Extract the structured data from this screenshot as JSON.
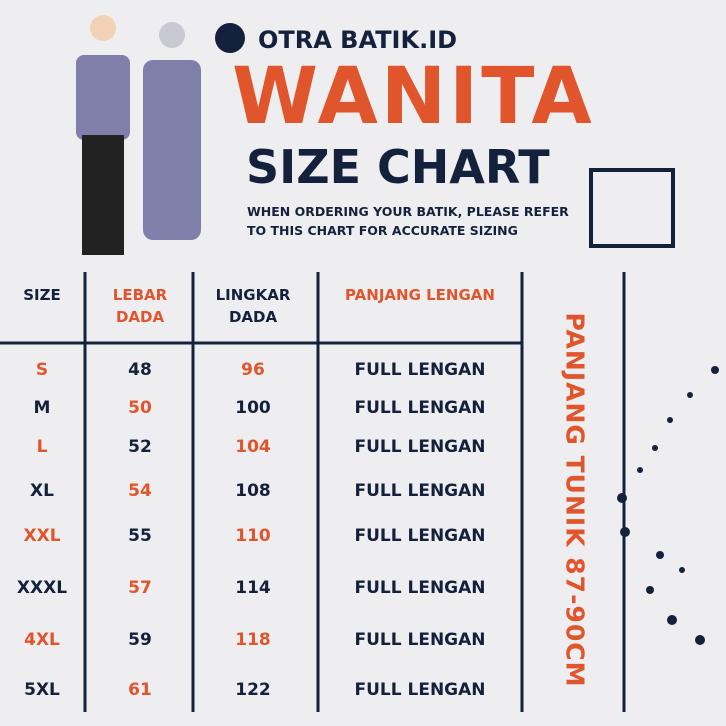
{
  "brand": "OTRA BATIK.ID",
  "title": "WANITA",
  "subtitle": "SIZE CHART",
  "note": "WHEN ORDERING YOUR BATIK, PLEASE REFER TO THIS CHART FOR ACCURATE SIZING",
  "table": {
    "headers": [
      "SIZE",
      "LEBAR DADA",
      "LINGKAR DADA",
      "PANJANG LENGAN"
    ],
    "rows": [
      [
        "S",
        "48",
        "96",
        "FULL LENGAN"
      ],
      [
        "M",
        "50",
        "100",
        "FULL LENGAN"
      ],
      [
        "L",
        "52",
        "104",
        "FULL LENGAN"
      ],
      [
        "XL",
        "54",
        "108",
        "FULL LENGAN"
      ],
      [
        "XXL",
        "55",
        "110",
        "FULL LENGAN"
      ],
      [
        "XXXL",
        "57",
        "114",
        "FULL LENGAN"
      ],
      [
        "4XL",
        "59",
        "118",
        "FULL LENGAN"
      ],
      [
        "5XL",
        "61",
        "122",
        "FULL LENGAN"
      ]
    ]
  },
  "side_note": "PANJANG TUNIK 87-90CM"
}
